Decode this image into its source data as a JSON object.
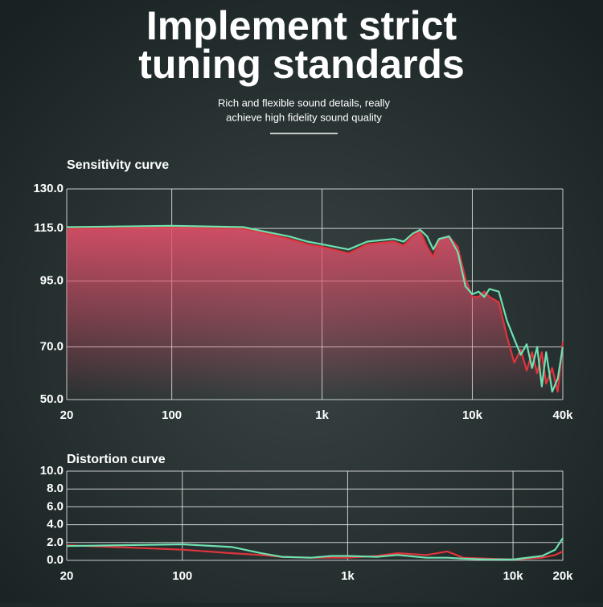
{
  "header": {
    "title_lines": [
      "Implement strict",
      "tuning standards"
    ],
    "subtitle_lines": [
      "Rich and flexible sound details, really",
      "achieve high fidelity sound quality"
    ]
  },
  "chart_data": [
    {
      "type": "line",
      "title": "Sensitivity curve",
      "log_x": true,
      "grid": true,
      "xlim": [
        20,
        40000
      ],
      "xticks": [
        20,
        100,
        {
          "value": 1000,
          "label": "1k"
        },
        {
          "value": 10000,
          "label": "10k"
        },
        {
          "value": 40000,
          "label": "40k"
        }
      ],
      "ylim": [
        50,
        130
      ],
      "yticks": [
        {
          "value": 130,
          "label": "130.0"
        },
        {
          "value": 115,
          "label": "115.0"
        },
        {
          "value": 95,
          "label": "95.0"
        },
        {
          "value": 70,
          "label": "70.0"
        },
        {
          "value": 50,
          "label": "50.0"
        }
      ],
      "x": [
        20,
        100,
        300,
        400,
        600,
        800,
        1000,
        1500,
        2000,
        3000,
        3500,
        4000,
        4500,
        5000,
        5500,
        6000,
        7000,
        8000,
        9000,
        10000,
        11000,
        12000,
        13000,
        15000,
        17000,
        19000,
        21000,
        23000,
        25000,
        27000,
        29000,
        31000,
        34000,
        37000,
        40000
      ],
      "series": [
        {
          "color": "#e0343c",
          "area": true,
          "values": [
            115,
            115.5,
            115,
            113.5,
            111,
            109,
            108,
            105.5,
            109,
            110,
            108.5,
            112,
            114,
            108,
            104,
            111,
            112,
            108,
            96,
            89,
            89,
            91,
            89,
            87,
            74,
            64,
            69,
            61,
            68,
            60,
            68,
            56,
            62,
            53,
            72
          ]
        },
        {
          "color": "#6fe0b0",
          "values": [
            115.5,
            116,
            115.5,
            114,
            112,
            110,
            109,
            107,
            110,
            111,
            110,
            113,
            114.5,
            112,
            107,
            111,
            112,
            106,
            93,
            90,
            91,
            89,
            92,
            91,
            80,
            73,
            67,
            71,
            62,
            70,
            55,
            68,
            53,
            58,
            70
          ]
        }
      ]
    },
    {
      "type": "line",
      "title": "Distortion curve",
      "log_x": true,
      "grid": true,
      "xlim": [
        20,
        20000
      ],
      "xticks": [
        20,
        100,
        {
          "value": 1000,
          "label": "1k"
        },
        {
          "value": 10000,
          "label": "10k"
        },
        {
          "value": 20000,
          "label": "20k"
        }
      ],
      "ylim": [
        0,
        10
      ],
      "yticks": [
        {
          "value": 0,
          "label": "0.0"
        },
        {
          "value": 2,
          "label": "2.0"
        },
        {
          "value": 4,
          "label": "4.0"
        },
        {
          "value": 6,
          "label": "6.0"
        },
        {
          "value": 8,
          "label": "8.0"
        },
        {
          "value": 10,
          "label": "10.0"
        }
      ],
      "x": [
        20,
        100,
        200,
        300,
        400,
        600,
        800,
        1000,
        1500,
        2000,
        3000,
        4000,
        5000,
        7000,
        10000,
        15000,
        18000,
        20000
      ],
      "series": [
        {
          "color": "#e0343c",
          "values": [
            1.7,
            1.2,
            0.8,
            0.6,
            0.4,
            0.3,
            0.3,
            0.3,
            0.5,
            0.8,
            0.6,
            1.0,
            0.3,
            0.2,
            0.1,
            0.3,
            0.6,
            1.0
          ]
        },
        {
          "color": "#6fe0b0",
          "values": [
            1.6,
            1.8,
            1.5,
            0.8,
            0.4,
            0.3,
            0.5,
            0.5,
            0.4,
            0.6,
            0.3,
            0.3,
            0.2,
            0.1,
            0.1,
            0.5,
            1.2,
            2.5
          ]
        }
      ]
    }
  ]
}
